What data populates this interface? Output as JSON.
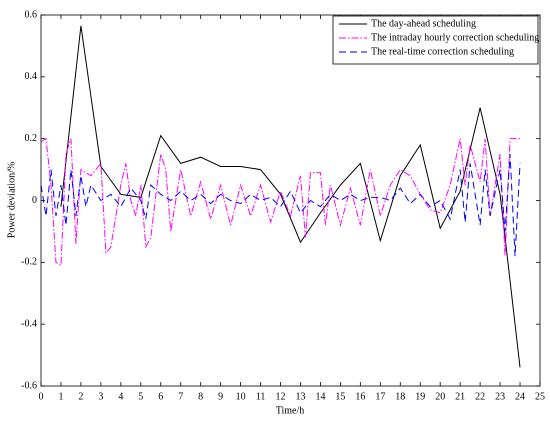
{
  "chart_data": {
    "type": "line",
    "xlabel": "Time/h",
    "ylabel": "Power deviation/%",
    "xlim": [
      0,
      25
    ],
    "xticks": [
      0,
      1,
      2,
      3,
      4,
      5,
      6,
      7,
      8,
      9,
      10,
      11,
      12,
      13,
      14,
      15,
      16,
      17,
      18,
      19,
      20,
      21,
      22,
      23,
      24,
      25
    ],
    "ylim": [
      -0.6,
      0.6
    ],
    "yticks": [
      -0.6,
      -0.4,
      -0.2,
      0,
      0.2,
      0.4,
      0.6
    ],
    "grid": false,
    "legend": "upper right",
    "series": [
      {
        "name": "The day-ahead scheduling",
        "color": "#000000",
        "linestyle": "solid",
        "x": [
          1,
          2,
          3,
          4,
          5,
          6,
          7,
          8,
          9,
          10,
          11,
          12,
          13,
          14,
          15,
          16,
          17,
          18,
          19,
          20,
          21,
          22,
          23,
          24
        ],
        "values": [
          -0.02,
          0.565,
          0.11,
          0.02,
          0.01,
          0.21,
          0.12,
          0.14,
          0.11,
          0.11,
          0.1,
          0.02,
          -0.135,
          -0.04,
          0.05,
          0.12,
          -0.13,
          0.08,
          0.18,
          -0.09,
          0.03,
          0.3,
          0.02,
          -0.54
        ]
      },
      {
        "name": "The intraday hourly correction scheduling",
        "color": "#ff00ff",
        "linestyle": "dashdot",
        "x": [
          0,
          0.25,
          0.5,
          0.75,
          1,
          1.25,
          1.5,
          1.75,
          2,
          2.5,
          2.75,
          3,
          3.25,
          3.5,
          4,
          4.25,
          4.5,
          4.75,
          5,
          5.25,
          5.5,
          6,
          6.25,
          6.5,
          7,
          7.5,
          8,
          8.5,
          9,
          9.5,
          10,
          10.5,
          11,
          11.5,
          12,
          12.5,
          13,
          13.25,
          13.5,
          14,
          14.25,
          14.5,
          15,
          15.5,
          16,
          16.5,
          17,
          17.5,
          18,
          18.5,
          19,
          19.5,
          20,
          20.5,
          21,
          21.25,
          21.5,
          22,
          22.25,
          22.5,
          23,
          23.25,
          23.5,
          24
        ],
        "values": [
          0.19,
          0.2,
          0.05,
          -0.2,
          -0.21,
          0.15,
          0.2,
          -0.14,
          0.1,
          0.08,
          0.1,
          0.12,
          -0.17,
          -0.15,
          0.05,
          0.12,
          0.0,
          -0.05,
          0.05,
          -0.15,
          -0.12,
          0.15,
          0.1,
          -0.1,
          0.1,
          -0.05,
          0.06,
          -0.06,
          0.05,
          -0.08,
          0.05,
          -0.05,
          0.05,
          -0.07,
          0.03,
          -0.05,
          0.08,
          -0.12,
          0.09,
          0.09,
          -0.08,
          0.05,
          -0.08,
          0.04,
          -0.08,
          0.1,
          -0.05,
          0.05,
          0.1,
          0.08,
          0.02,
          -0.03,
          -0.04,
          0.05,
          0.2,
          0.05,
          0.18,
          0.06,
          0.2,
          -0.05,
          0.15,
          -0.18,
          0.2,
          0.2
        ]
      },
      {
        "name": "The real-time correction scheduling",
        "color": "#0000ff",
        "linestyle": "dashed",
        "x": [
          0,
          0.25,
          0.5,
          0.75,
          1,
          1.25,
          1.5,
          1.75,
          2,
          2.25,
          2.5,
          3,
          3.5,
          4,
          4.5,
          5,
          5.25,
          5.5,
          6,
          6.5,
          7,
          7.5,
          8,
          8.5,
          9,
          9.5,
          10,
          10.5,
          11,
          11.5,
          12,
          12.5,
          13,
          13.5,
          14,
          14.5,
          15,
          15.5,
          16,
          16.5,
          17,
          17.5,
          18,
          18.5,
          19,
          19.5,
          20,
          20.5,
          21,
          21.25,
          21.5,
          22,
          22.25,
          22.5,
          23,
          23.25,
          23.5,
          23.75,
          24
        ],
        "values": [
          0.05,
          -0.05,
          0.1,
          -0.05,
          0.05,
          -0.08,
          0.1,
          -0.05,
          0.08,
          -0.02,
          0.05,
          0.0,
          0.02,
          -0.02,
          0.04,
          0.0,
          -0.06,
          0.05,
          0.02,
          0.0,
          0.03,
          0.0,
          0.02,
          -0.01,
          0.02,
          0.0,
          -0.01,
          0.02,
          0.0,
          0.01,
          -0.02,
          0.03,
          -0.04,
          0.0,
          -0.02,
          0.02,
          0.0,
          0.02,
          0.0,
          0.01,
          0.01,
          0.0,
          0.04,
          -0.01,
          0.02,
          -0.02,
          0.0,
          -0.06,
          0.1,
          -0.07,
          0.12,
          -0.08,
          0.1,
          -0.05,
          0.1,
          -0.1,
          0.15,
          -0.18,
          0.12
        ]
      }
    ]
  }
}
